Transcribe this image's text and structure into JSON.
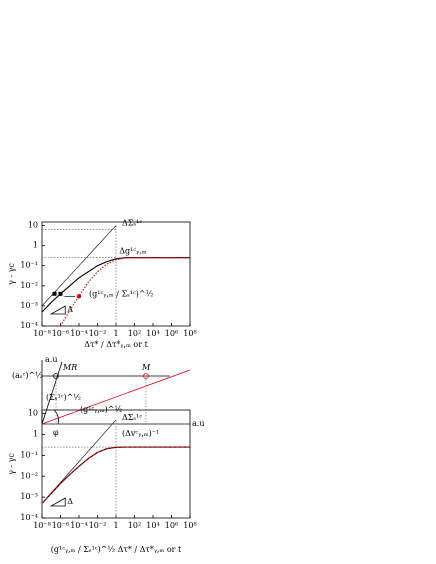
{
  "chart_data": [
    {
      "type": "line",
      "x_label": "Δτ* / Δτ*ᵧ,ₘ  or  t",
      "y_label": "γ - γc",
      "log_x": true,
      "log_y": true,
      "x": [
        1e-08,
        1e-07,
        1e-06,
        1e-05,
        0.0001,
        0.001,
        0.01,
        0.1,
        1,
        10,
        100,
        1000,
        10000,
        100000,
        1000000,
        10000000,
        100000000
      ],
      "xlim": [
        1e-08,
        100000000.0
      ],
      "xticks": [
        {
          "value": 1e-08,
          "label": "10⁻⁸"
        },
        {
          "value": 1e-06,
          "label": "10⁻⁶"
        },
        {
          "value": 0.0001,
          "label": "10⁻⁴"
        },
        {
          "value": 0.01,
          "label": "10⁻²"
        },
        1,
        {
          "value": 100,
          "label": "10²"
        },
        {
          "value": 10000,
          "label": "10⁴"
        },
        {
          "value": 1000000,
          "label": "10⁶"
        },
        {
          "value": 100000000,
          "label": "10⁸"
        }
      ],
      "ylim": [
        0.0001,
        15
      ],
      "yticks": [
        10,
        1,
        {
          "value": 0.1,
          "label": "10⁻¹"
        },
        {
          "value": 0.01,
          "label": "10⁻²"
        },
        {
          "value": 0.001,
          "label": "10⁻³"
        },
        {
          "value": 0.0001,
          "label": "10⁻⁴"
        }
      ],
      "series": [
        {
          "name": "ΔΣₛ¹ᶜ",
          "color": "#000000",
          "dash": "none",
          "values": [
            0.001,
            0.00316,
            0.01,
            0.0316,
            0.1,
            0.316,
            1,
            3.16,
            10,
            null,
            null,
            null,
            null,
            null,
            null,
            null,
            null
          ]
        },
        {
          "name": "Δg¹ᶜᵧ,ₘ",
          "color": "#000000",
          "dash": "none",
          "values": [
            0.0005,
            0.0015,
            0.004,
            0.01,
            0.025,
            0.05,
            0.1,
            0.16,
            0.22,
            0.25,
            0.25,
            0.25,
            0.25,
            0.25,
            0.25,
            0.25,
            0.25
          ]
        },
        {
          "name": "(g¹ᶜᵧ,ₘ / Σₛ¹ᶜ)^½",
          "color": "#e00000",
          "dash": "1.5 1.5",
          "values": [
            null,
            null,
            0.0001,
            0.0006,
            0.003,
            0.015,
            0.05,
            0.12,
            0.2,
            0.24,
            0.25,
            0.25,
            0.25,
            0.25,
            0.25,
            0.25,
            0.25
          ]
        }
      ],
      "annotations": [
        "Δ"
      ]
    },
    {
      "type": "line",
      "x_label": "(g¹ᶜᵧ,ₘ / Σₛ¹ᶜ)^½ Δτ* / Δτ*ᵧ,ₘ  or  t",
      "y_label": "γ - γc",
      "log_x": true,
      "log_y": true,
      "x": [
        1e-08,
        1e-07,
        1e-06,
        1e-05,
        0.0001,
        0.001,
        0.01,
        0.1,
        1,
        10,
        100,
        1000,
        10000,
        100000,
        1000000,
        10000000,
        100000000
      ],
      "xlim": [
        1e-08,
        100000000.0
      ],
      "xticks": [
        {
          "value": 1e-08,
          "label": "10⁻⁸"
        },
        {
          "value": 1e-06,
          "label": "10⁻⁶"
        },
        {
          "value": 0.0001,
          "label": "10⁻⁴"
        },
        {
          "value": 0.01,
          "label": "10⁻²"
        },
        1,
        {
          "value": 100,
          "label": "10²"
        },
        {
          "value": 10000,
          "label": "10⁴"
        },
        {
          "value": 1000000,
          "label": "10⁶"
        },
        {
          "value": 100000000,
          "label": "10⁸"
        }
      ],
      "ylim": [
        0.0001,
        15
      ],
      "yticks": [
        10,
        1,
        {
          "value": 0.1,
          "label": "10⁻¹"
        },
        {
          "value": 0.01,
          "label": "10⁻²"
        },
        {
          "value": 0.001,
          "label": "10⁻³"
        },
        {
          "value": 0.0001,
          "label": "10⁻⁴"
        }
      ],
      "series": [
        {
          "name": "ΔΣₛ¹ᶜ",
          "color": "#000000",
          "dash": "none",
          "values": [
            0.0005,
            0.0016,
            0.005,
            0.016,
            0.05,
            0.16,
            0.5,
            1.6,
            5,
            null,
            null,
            null,
            null,
            null,
            null,
            null,
            null
          ]
        },
        {
          "name": "black",
          "color": "#000000",
          "dash": "none",
          "values": [
            0.0005,
            0.0015,
            0.0045,
            0.012,
            0.03,
            0.07,
            0.14,
            0.21,
            0.245,
            0.25,
            0.25,
            0.25,
            0.25,
            0.25,
            0.25,
            0.25,
            0.25
          ]
        },
        {
          "name": "red",
          "color": "#e00000",
          "dash": "3 2",
          "values": [
            0.0005,
            0.0015,
            0.0045,
            0.012,
            0.03,
            0.07,
            0.14,
            0.21,
            0.245,
            0.25,
            0.25,
            0.25,
            0.25,
            0.25,
            0.25,
            0.25,
            0.25
          ]
        }
      ],
      "annotations": [
        "Δ"
      ]
    }
  ],
  "diagram": {
    "y_axis_label": "a.u",
    "x_axis_label": "a.u",
    "level_label": "(aₛᶜ)^½",
    "mr_label": "MR",
    "m_label": "M",
    "sigma_label": "(Σₛ¹ᶜ)^½",
    "g_label": "(g¹ᶜᵧ,ₘ)^½",
    "phi_label": "φ",
    "dv_label": "(Δvᶜᵧ,ₘ)⁻¹"
  }
}
